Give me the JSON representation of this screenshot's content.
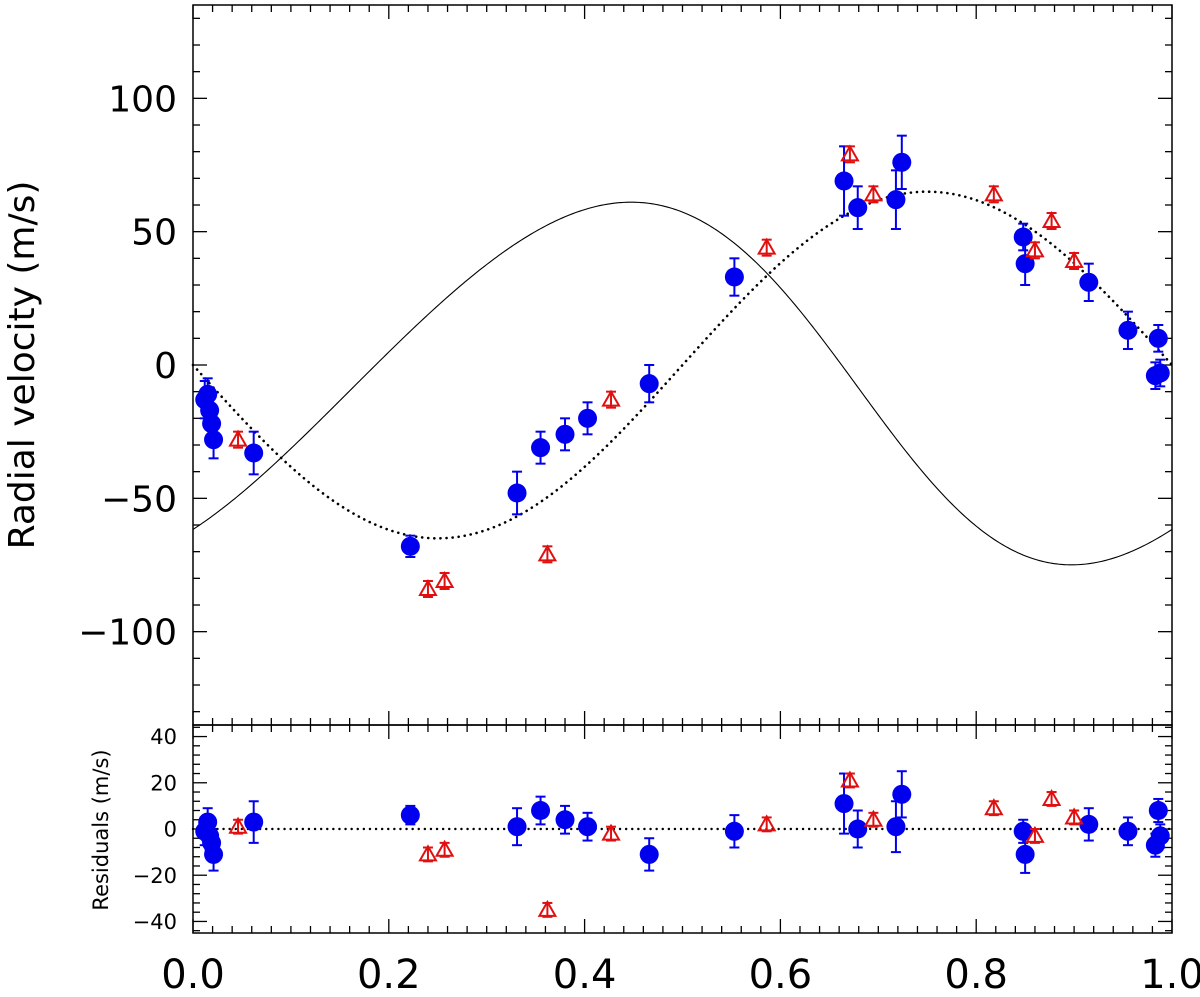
{
  "chart_data": [
    {
      "type": "scatter",
      "panel": "main",
      "title": "",
      "ylabel": "Radial velocity (m/s)",
      "xlabel": "",
      "xlim": [
        0.0,
        1.0
      ],
      "ylim": [
        -135,
        135
      ],
      "x_ticks": [
        "0.0",
        "0.2",
        "0.4",
        "0.6",
        "0.8",
        "1.0"
      ],
      "y_ticks": [
        "100",
        "50",
        "0",
        "−50",
        "−100"
      ],
      "y_tick_values": [
        100,
        50,
        0,
        -50,
        -100
      ],
      "grid": false,
      "colors": {
        "series_a": "#0000ee",
        "series_b": "#e01010",
        "model": "#000000"
      },
      "series": [
        {
          "marker": "filled-circle",
          "color": "#0000ee",
          "points": [
            {
              "x": 0.012,
              "y": -13,
              "err": 7
            },
            {
              "x": 0.015,
              "y": -11,
              "err": 6
            },
            {
              "x": 0.017,
              "y": -17,
              "err": 7
            },
            {
              "x": 0.019,
              "y": -22,
              "err": 7
            },
            {
              "x": 0.021,
              "y": -28,
              "err": 7
            },
            {
              "x": 0.062,
              "y": -33,
              "err": 8
            },
            {
              "x": 0.222,
              "y": -68,
              "err": 4
            },
            {
              "x": 0.331,
              "y": -48,
              "err": 8
            },
            {
              "x": 0.355,
              "y": -31,
              "err": 6
            },
            {
              "x": 0.38,
              "y": -26,
              "err": 6
            },
            {
              "x": 0.403,
              "y": -20,
              "err": 6
            },
            {
              "x": 0.466,
              "y": -7,
              "err": 7
            },
            {
              "x": 0.553,
              "y": 33,
              "err": 7
            },
            {
              "x": 0.665,
              "y": 69,
              "err": 13
            },
            {
              "x": 0.679,
              "y": 59,
              "err": 8
            },
            {
              "x": 0.718,
              "y": 62,
              "err": 11
            },
            {
              "x": 0.724,
              "y": 76,
              "err": 10
            },
            {
              "x": 0.848,
              "y": 48,
              "err": 5
            },
            {
              "x": 0.85,
              "y": 38,
              "err": 8
            },
            {
              "x": 0.915,
              "y": 31,
              "err": 7
            },
            {
              "x": 0.955,
              "y": 13,
              "err": 7
            },
            {
              "x": 0.983,
              "y": -4,
              "err": 5
            },
            {
              "x": 0.986,
              "y": 10,
              "err": 5
            },
            {
              "x": 0.988,
              "y": -3,
              "err": 5
            }
          ]
        },
        {
          "marker": "open-triangle",
          "color": "#e01010",
          "points": [
            {
              "x": 0.046,
              "y": -28,
              "err": 3
            },
            {
              "x": 0.24,
              "y": -84,
              "err": 3
            },
            {
              "x": 0.257,
              "y": -81,
              "err": 3
            },
            {
              "x": 0.362,
              "y": -71,
              "err": 3
            },
            {
              "x": 0.427,
              "y": -13,
              "err": 3
            },
            {
              "x": 0.586,
              "y": 44,
              "err": 3
            },
            {
              "x": 0.671,
              "y": 79,
              "err": 3
            },
            {
              "x": 0.695,
              "y": 64,
              "err": 3
            },
            {
              "x": 0.818,
              "y": 64,
              "err": 3
            },
            {
              "x": 0.86,
              "y": 43,
              "err": 3
            },
            {
              "x": 0.877,
              "y": 54,
              "err": 3
            },
            {
              "x": 0.9,
              "y": 39,
              "err": 3
            }
          ]
        }
      ],
      "model_curves": [
        {
          "style": "solid",
          "K": 68,
          "e": 0.08,
          "omega_deg": 100,
          "gamma": -6,
          "tp": 0.7
        },
        {
          "style": "dotted",
          "K": 65,
          "e": 0.0,
          "omega_deg": 0,
          "gamma": 0,
          "tp": 0.75
        }
      ]
    },
    {
      "type": "scatter",
      "panel": "residuals",
      "ylabel": "Residuals (m/s)",
      "xlabel": "",
      "xlim": [
        0.0,
        1.0
      ],
      "ylim": [
        -45,
        45
      ],
      "x_ticks": [
        "0.0",
        "0.2",
        "0.4",
        "0.6",
        "0.8",
        "1.0"
      ],
      "y_ticks": [
        "40",
        "20",
        "0",
        "−20",
        "−40"
      ],
      "y_tick_values": [
        40,
        20,
        0,
        -20,
        -40
      ],
      "zero_line": "dotted",
      "series": [
        {
          "marker": "filled-circle",
          "color": "#0000ee",
          "points": [
            {
              "x": 0.012,
              "y": -1,
              "err": 6
            },
            {
              "x": 0.015,
              "y": 3,
              "err": 6
            },
            {
              "x": 0.017,
              "y": -3,
              "err": 6
            },
            {
              "x": 0.019,
              "y": -6,
              "err": 6
            },
            {
              "x": 0.021,
              "y": -11,
              "err": 7
            },
            {
              "x": 0.062,
              "y": 3,
              "err": 9
            },
            {
              "x": 0.222,
              "y": 6,
              "err": 4
            },
            {
              "x": 0.331,
              "y": 1,
              "err": 8
            },
            {
              "x": 0.355,
              "y": 8,
              "err": 6
            },
            {
              "x": 0.38,
              "y": 4,
              "err": 6
            },
            {
              "x": 0.403,
              "y": 1,
              "err": 6
            },
            {
              "x": 0.466,
              "y": -11,
              "err": 7
            },
            {
              "x": 0.553,
              "y": -1,
              "err": 7
            },
            {
              "x": 0.665,
              "y": 11,
              "err": 13
            },
            {
              "x": 0.679,
              "y": 0,
              "err": 8
            },
            {
              "x": 0.718,
              "y": 1,
              "err": 11
            },
            {
              "x": 0.724,
              "y": 15,
              "err": 10
            },
            {
              "x": 0.848,
              "y": -1,
              "err": 5
            },
            {
              "x": 0.85,
              "y": -11,
              "err": 8
            },
            {
              "x": 0.915,
              "y": 2,
              "err": 7
            },
            {
              "x": 0.955,
              "y": -1,
              "err": 6
            },
            {
              "x": 0.983,
              "y": -7,
              "err": 5
            },
            {
              "x": 0.986,
              "y": 8,
              "err": 5
            },
            {
              "x": 0.988,
              "y": -3,
              "err": 5
            }
          ]
        },
        {
          "marker": "open-triangle",
          "color": "#e01010",
          "points": [
            {
              "x": 0.046,
              "y": 1,
              "err": 3
            },
            {
              "x": 0.24,
              "y": -11,
              "err": 3
            },
            {
              "x": 0.257,
              "y": -9,
              "err": 3
            },
            {
              "x": 0.362,
              "y": -35,
              "err": 3
            },
            {
              "x": 0.427,
              "y": -2,
              "err": 3
            },
            {
              "x": 0.586,
              "y": 2,
              "err": 3
            },
            {
              "x": 0.671,
              "y": 21,
              "err": 3
            },
            {
              "x": 0.695,
              "y": 4,
              "err": 3
            },
            {
              "x": 0.818,
              "y": 9,
              "err": 3
            },
            {
              "x": 0.86,
              "y": -3,
              "err": 3
            },
            {
              "x": 0.877,
              "y": 13,
              "err": 3
            },
            {
              "x": 0.9,
              "y": 5,
              "err": 3
            }
          ]
        }
      ]
    }
  ]
}
